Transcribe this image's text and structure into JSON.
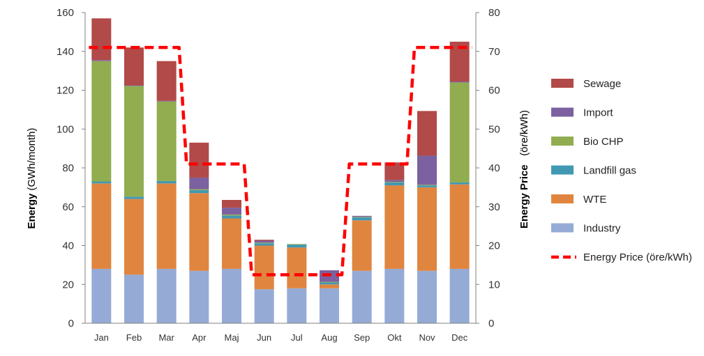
{
  "chart_data": {
    "type": "bar",
    "stacked": true,
    "categories": [
      "Jan",
      "Feb",
      "Mar",
      "Apr",
      "Maj",
      "Jun",
      "Jul",
      "Aug",
      "Sep",
      "Okt",
      "Nov",
      "Dec"
    ],
    "ylabel_left": {
      "bold": "Energy",
      "normal": " (GWh/month)"
    },
    "ylabel_right": {
      "bold": "Energy Price",
      "normal": "   (öre/kWh)"
    },
    "ylim_left": [
      0,
      160
    ],
    "ylim_right": [
      0,
      80
    ],
    "y_ticks_left": [
      "0",
      "20",
      "40",
      "60",
      "80",
      "100",
      "120",
      "140",
      "160"
    ],
    "y_ticks_right": [
      "0",
      "10",
      "20",
      "30",
      "40",
      "50",
      "60",
      "70",
      "80"
    ],
    "series": [
      {
        "name": "Industry",
        "color": "#95abd5",
        "values": [
          28,
          25,
          28,
          27,
          28,
          17.5,
          18,
          18,
          27,
          28,
          27,
          28
        ]
      },
      {
        "name": "WTE",
        "color": "#e0853f",
        "values": [
          44,
          39,
          44,
          40,
          26,
          22.5,
          21,
          2,
          26,
          43,
          43,
          43.5
        ]
      },
      {
        "name": "Landfill gas",
        "color": "#4198b3",
        "values": [
          1,
          1.2,
          1.2,
          1.5,
          1.5,
          1.2,
          1.5,
          1,
          1.5,
          1.5,
          1,
          1
        ]
      },
      {
        "name": "Bio CHP",
        "color": "#91ad4f",
        "values": [
          62,
          57,
          41,
          0.5,
          0.5,
          0.3,
          0.3,
          0.3,
          0.3,
          0.3,
          0.3,
          51.5
        ]
      },
      {
        "name": "Import",
        "color": "#7b619f",
        "values": [
          0.5,
          0.3,
          0.3,
          6,
          3.5,
          1,
          0,
          6,
          0.5,
          1,
          15,
          0.5
        ]
      },
      {
        "name": "Sewage",
        "color": "#b14a48",
        "values": [
          21.5,
          19.5,
          20.5,
          18,
          4,
          0.5,
          0,
          0,
          0,
          9,
          23,
          20.5
        ]
      }
    ],
    "line_series": {
      "name": "Energy Price (öre/kWh)",
      "axis": "right",
      "color": "#ff0000",
      "style": "dashed",
      "values": [
        71,
        71,
        71,
        41,
        41,
        12.5,
        12.5,
        12.5,
        41,
        41,
        71,
        71
      ]
    },
    "legend": {
      "placement": "right",
      "items": [
        "Sewage",
        "Import",
        "Bio CHP",
        "Landfill gas",
        "WTE",
        "Industry",
        "Energy Price (öre/kWh)"
      ]
    },
    "grid": false
  }
}
